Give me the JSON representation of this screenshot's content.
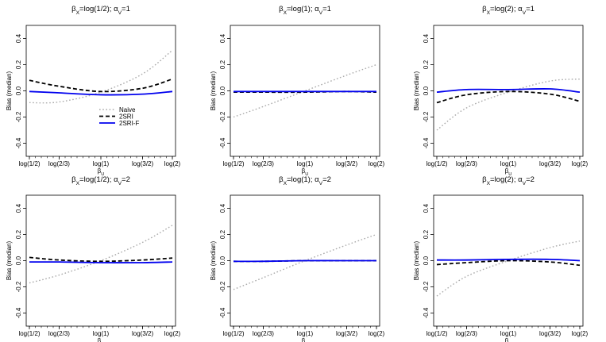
{
  "chart_data": [
    {
      "type": "line",
      "title": "βX=log(1/2); αV=1",
      "xlabel": "βU",
      "ylabel": "Bias (median)",
      "xticks": [
        "log(1/2)",
        "log(2/3)",
        "log(1)",
        "log(3/2)",
        "log(2)"
      ],
      "x": [
        -0.693,
        -0.405,
        0.0,
        0.405,
        0.693
      ],
      "ylim": [
        -0.5,
        0.5
      ],
      "yticks": [
        -0.4,
        -0.2,
        0.0,
        0.2,
        0.4
      ],
      "ytick_labels": [
        "-0.4",
        "-0.2",
        "0.0",
        "0.2",
        "0.4"
      ],
      "grid": false,
      "legend": {
        "position": "center",
        "entries": [
          "Naive",
          "2SRI",
          "2SRI-F"
        ]
      },
      "series": [
        {
          "name": "Naive",
          "color": "#aaaaaa",
          "style": "dotted",
          "values": [
            -0.09,
            -0.085,
            -0.01,
            0.13,
            0.31
          ]
        },
        {
          "name": "2SRI",
          "color": "#000000",
          "style": "dashed",
          "values": [
            0.08,
            0.035,
            -0.005,
            0.02,
            0.09
          ]
        },
        {
          "name": "2SRI-F",
          "color": "#0000ee",
          "style": "solid",
          "values": [
            -0.005,
            -0.015,
            -0.03,
            -0.025,
            -0.005
          ]
        }
      ]
    },
    {
      "type": "line",
      "title": "βX=log(1); αV=1",
      "xlabel": "βU",
      "ylabel": "Bias (median)",
      "xticks": [
        "log(1/2)",
        "log(2/3)",
        "log(1)",
        "log(3/2)",
        "log(2)"
      ],
      "x": [
        -0.693,
        -0.405,
        0.0,
        0.405,
        0.693
      ],
      "ylim": [
        -0.5,
        0.5
      ],
      "yticks": [
        -0.4,
        -0.2,
        0.0,
        0.2,
        0.4
      ],
      "ytick_labels": [
        "-0.4",
        "-0.2",
        "0.0",
        "0.2",
        "0.4"
      ],
      "grid": false,
      "series": [
        {
          "name": "Naive",
          "color": "#aaaaaa",
          "style": "dotted",
          "values": [
            -0.2,
            -0.12,
            0.0,
            0.12,
            0.2
          ]
        },
        {
          "name": "2SRI",
          "color": "#000000",
          "style": "dashed",
          "values": [
            -0.01,
            -0.01,
            -0.01,
            -0.005,
            -0.01
          ]
        },
        {
          "name": "2SRI-F",
          "color": "#0000ee",
          "style": "solid",
          "values": [
            -0.005,
            -0.005,
            -0.005,
            -0.005,
            -0.005
          ]
        }
      ]
    },
    {
      "type": "line",
      "title": "βX=log(2); αV=1",
      "xlabel": "βU",
      "ylabel": "Bias (median)",
      "xticks": [
        "log(1/2)",
        "log(2/3)",
        "log(1)",
        "log(3/2)",
        "log(2)"
      ],
      "x": [
        -0.693,
        -0.405,
        0.0,
        0.405,
        0.693
      ],
      "ylim": [
        -0.5,
        0.5
      ],
      "yticks": [
        -0.4,
        -0.2,
        0.0,
        0.2,
        0.4
      ],
      "ytick_labels": [
        "-0.4",
        "-0.2",
        "0.0",
        "0.2",
        "0.4"
      ],
      "grid": false,
      "series": [
        {
          "name": "Naive",
          "color": "#aaaaaa",
          "style": "dotted",
          "values": [
            -0.3,
            -0.13,
            -0.01,
            0.075,
            0.09
          ]
        },
        {
          "name": "2SRI",
          "color": "#000000",
          "style": "dashed",
          "values": [
            -0.09,
            -0.03,
            -0.005,
            -0.025,
            -0.08
          ]
        },
        {
          "name": "2SRI-F",
          "color": "#0000ee",
          "style": "solid",
          "values": [
            -0.01,
            0.01,
            0.01,
            0.015,
            -0.01
          ]
        }
      ]
    },
    {
      "type": "line",
      "title": "βX=log(1/2); αV=2",
      "xlabel": "βU",
      "ylabel": "Bias (median)",
      "xticks": [
        "log(1/2)",
        "log(2/3)",
        "log(1)",
        "log(3/2)",
        "log(2)"
      ],
      "x": [
        -0.693,
        -0.405,
        0.0,
        0.405,
        0.693
      ],
      "ylim": [
        -0.5,
        0.5
      ],
      "yticks": [
        -0.4,
        -0.2,
        0.0,
        0.2,
        0.4
      ],
      "ytick_labels": [
        "-0.4",
        "-0.2",
        "0.0",
        "0.2",
        "0.4"
      ],
      "grid": false,
      "series": [
        {
          "name": "Naive",
          "color": "#aaaaaa",
          "style": "dotted",
          "values": [
            -0.17,
            -0.11,
            0.0,
            0.14,
            0.27
          ]
        },
        {
          "name": "2SRI",
          "color": "#000000",
          "style": "dashed",
          "values": [
            0.025,
            0.005,
            -0.005,
            0.005,
            0.02
          ]
        },
        {
          "name": "2SRI-F",
          "color": "#0000ee",
          "style": "solid",
          "values": [
            -0.01,
            -0.01,
            -0.015,
            -0.015,
            -0.01
          ]
        }
      ]
    },
    {
      "type": "line",
      "title": "βX=log(1); αV=2",
      "xlabel": "βU",
      "ylabel": "Bias (median)",
      "xticks": [
        "log(1/2)",
        "log(2/3)",
        "log(1)",
        "log(3/2)",
        "log(2)"
      ],
      "x": [
        -0.693,
        -0.405,
        0.0,
        0.405,
        0.693
      ],
      "ylim": [
        -0.5,
        0.5
      ],
      "yticks": [
        -0.4,
        -0.2,
        0.0,
        0.2,
        0.4
      ],
      "ytick_labels": [
        "-0.4",
        "-0.2",
        "0.0",
        "0.2",
        "0.4"
      ],
      "grid": false,
      "series": [
        {
          "name": "Naive",
          "color": "#aaaaaa",
          "style": "dotted",
          "values": [
            -0.22,
            -0.13,
            0.0,
            0.12,
            0.2
          ]
        },
        {
          "name": "2SRI",
          "color": "#000000",
          "style": "dashed",
          "values": [
            -0.005,
            -0.005,
            0.0,
            0.0,
            0.0
          ]
        },
        {
          "name": "2SRI-F",
          "color": "#0000ee",
          "style": "solid",
          "values": [
            -0.005,
            -0.005,
            0.0,
            0.0,
            0.0
          ]
        }
      ]
    },
    {
      "type": "line",
      "title": "βX=log(2); αV=2",
      "xlabel": "βU",
      "ylabel": "Bias (median)",
      "xticks": [
        "log(1/2)",
        "log(2/3)",
        "log(1)",
        "log(3/2)",
        "log(2)"
      ],
      "x": [
        -0.693,
        -0.405,
        0.0,
        0.405,
        0.693
      ],
      "ylim": [
        -0.5,
        0.5
      ],
      "yticks": [
        -0.4,
        -0.2,
        0.0,
        0.2,
        0.4
      ],
      "ytick_labels": [
        "-0.4",
        "-0.2",
        "0.0",
        "0.2",
        "0.4"
      ],
      "grid": false,
      "series": [
        {
          "name": "Naive",
          "color": "#aaaaaa",
          "style": "dotted",
          "values": [
            -0.27,
            -0.12,
            0.0,
            0.1,
            0.15
          ]
        },
        {
          "name": "2SRI",
          "color": "#000000",
          "style": "dashed",
          "values": [
            -0.03,
            -0.015,
            0.0,
            -0.01,
            -0.035
          ]
        },
        {
          "name": "2SRI-F",
          "color": "#0000ee",
          "style": "solid",
          "values": [
            0.005,
            0.005,
            0.01,
            0.01,
            0.0
          ]
        }
      ]
    }
  ]
}
